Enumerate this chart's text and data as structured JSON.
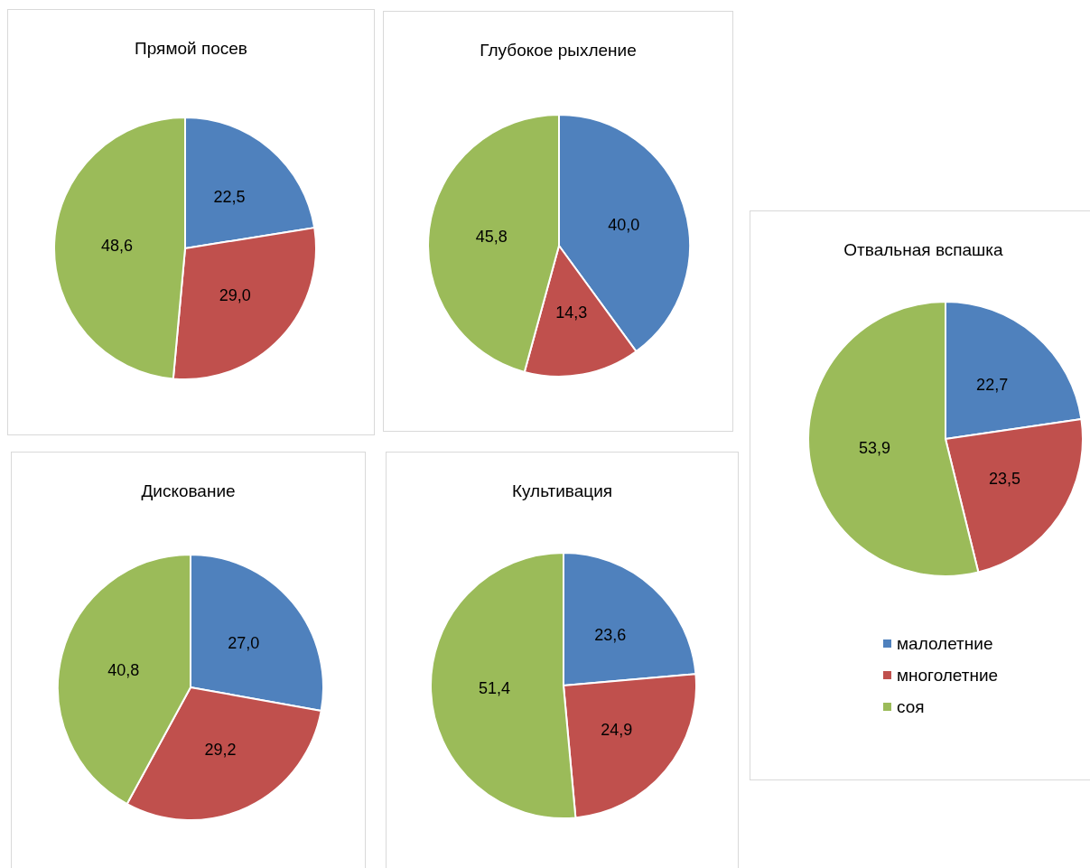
{
  "chart_data": [
    {
      "type": "pie",
      "title": "Прямой посев",
      "categories": [
        null,
        null,
        null
      ],
      "values": [
        22.5,
        29.0,
        48.6
      ],
      "value_labels": [
        "22,5",
        "29,0",
        "48,6"
      ],
      "colors": [
        "#4f81bd",
        "#c0504d",
        "#9bbb59"
      ],
      "legend": false
    },
    {
      "type": "pie",
      "title": "Глубокое рыхление",
      "categories": [
        null,
        null,
        null
      ],
      "values": [
        40.0,
        14.3,
        45.8
      ],
      "value_labels": [
        "40,0",
        "14,3",
        "45,8"
      ],
      "colors": [
        "#4f81bd",
        "#c0504d",
        "#9bbb59"
      ],
      "legend": false
    },
    {
      "type": "pie",
      "title": "Отвальная вспашка",
      "categories": [
        "малолетние",
        "многолетние",
        "соя"
      ],
      "values": [
        22.7,
        23.5,
        53.9
      ],
      "value_labels": [
        "22,7",
        "23,5",
        "53,9"
      ],
      "colors": [
        "#4f81bd",
        "#c0504d",
        "#9bbb59"
      ],
      "legend": "bottom"
    },
    {
      "type": "pie",
      "title": "Дискование",
      "categories": [
        null,
        null,
        null
      ],
      "values": [
        27.0,
        29.2,
        40.8
      ],
      "value_labels": [
        "27,0",
        "29,2",
        "40,8"
      ],
      "colors": [
        "#4f81bd",
        "#c0504d",
        "#9bbb59"
      ],
      "legend": false
    },
    {
      "type": "pie",
      "title": "Культивация",
      "categories": [
        null,
        null,
        null
      ],
      "values": [
        23.6,
        24.9,
        51.4
      ],
      "value_labels": [
        "23,6",
        "24,9",
        "51,4"
      ],
      "colors": [
        "#4f81bd",
        "#c0504d",
        "#9bbb59"
      ],
      "legend": false
    }
  ]
}
